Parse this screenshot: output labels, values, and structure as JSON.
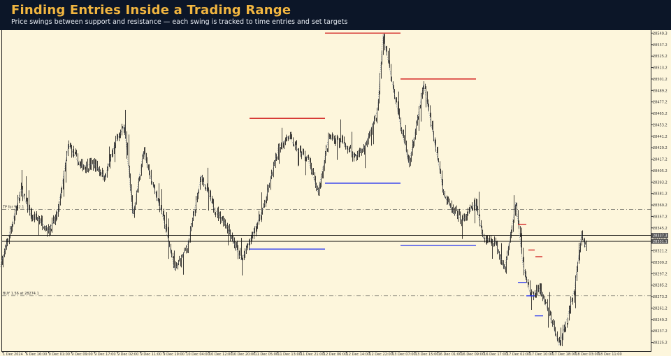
{
  "header": {
    "title": "Finding Entries Inside a Trading Range",
    "subtitle": "Price swings between support and resistance — each swing is tracked to time entries and set targets"
  },
  "chart_data": {
    "type": "candlestick",
    "price_axis": {
      "labels": [
        "28549.3",
        "28537.2",
        "28525.2",
        "28513.2",
        "28501.2",
        "28489.2",
        "28477.2",
        "28465.2",
        "28453.2",
        "28441.2",
        "28429.2",
        "28417.2",
        "28405.2",
        "28393.2",
        "28381.2",
        "28369.2",
        "28357.2",
        "28345.2",
        "28333.2",
        "28321.2",
        "28309.2",
        "28297.2",
        "28285.2",
        "28273.2",
        "28261.2",
        "28249.2",
        "28237.2",
        "28225.2"
      ],
      "range": [
        28219,
        28551
      ]
    },
    "time_axis": {
      "labels": [
        "1 Dec 2024",
        "6 Dec 16:00",
        "9 Dec 01:00",
        "9 Dec 09:00",
        "9 Dec 17:00",
        "9 Dec 02:00",
        "9 Dec 11:00",
        "9 Dec 19:00",
        "10 Dec 04:00",
        "10 Dec 12:00",
        "10 Dec 20:00",
        "11 Dec 05:00",
        "11 Dec 13:00",
        "11 Dec 21:00",
        "12 Dec 06:00",
        "12 Dec 14:00",
        "12 Dec 22:00",
        "13 Dec 07:00",
        "13 Dec 15:00",
        "16 Dec 01:00",
        "16 Dec 09:00",
        "16 Dec 17:00",
        "17 Dec 02:00",
        "17 Dec 10:00",
        "17 Dec 18:00",
        "18 Dec 03:00",
        "18 Dec 11:00"
      ]
    },
    "price_tags": [
      {
        "text": "28337.3",
        "price": 28337.3,
        "color": "#000000"
      },
      {
        "text": "28331.1",
        "price": 28331.1,
        "color": "#000000"
      }
    ],
    "annotations": [
      {
        "text": "TP for 942.1",
        "price": 28364.5
      },
      {
        "text": "BUY 1.56 at 28274.1",
        "price": 28274.1
      }
    ],
    "levels": [
      {
        "kind": "resistance",
        "price": 28549.3,
        "from": 465,
        "to": 573
      },
      {
        "kind": "resistance",
        "price": 28501.2,
        "from": 573,
        "to": 681
      },
      {
        "kind": "resistance",
        "price": 28460.0,
        "from": 357,
        "to": 465
      },
      {
        "kind": "resistance",
        "price": 28349.0,
        "from": 741,
        "to": 753
      },
      {
        "kind": "resistance",
        "price": 28322.0,
        "from": 756,
        "to": 765
      },
      {
        "kind": "resistance",
        "price": 28315.0,
        "from": 766,
        "to": 776
      },
      {
        "kind": "support",
        "price": 28392.0,
        "from": 465,
        "to": 573
      },
      {
        "kind": "support",
        "price": 28323.0,
        "from": 357,
        "to": 465
      },
      {
        "kind": "support",
        "price": 28327.0,
        "from": 573,
        "to": 681
      },
      {
        "kind": "support",
        "price": 28288.0,
        "from": 741,
        "to": 753
      },
      {
        "kind": "support",
        "price": 28274.0,
        "from": 753,
        "to": 765
      },
      {
        "kind": "support",
        "price": 28253.0,
        "from": 765,
        "to": 777
      }
    ],
    "path": [
      {
        "t": 0,
        "p": 28304
      },
      {
        "t": 12,
        "p": 28335
      },
      {
        "t": 30,
        "p": 28386
      },
      {
        "t": 45,
        "p": 28356
      },
      {
        "t": 55,
        "p": 28355
      },
      {
        "t": 70,
        "p": 28342
      },
      {
        "t": 82,
        "p": 28360
      },
      {
        "t": 98,
        "p": 28432
      },
      {
        "t": 115,
        "p": 28410
      },
      {
        "t": 135,
        "p": 28412
      },
      {
        "t": 150,
        "p": 28398
      },
      {
        "t": 165,
        "p": 28435
      },
      {
        "t": 178,
        "p": 28452
      },
      {
        "t": 190,
        "p": 28358
      },
      {
        "t": 205,
        "p": 28425
      },
      {
        "t": 218,
        "p": 28392
      },
      {
        "t": 232,
        "p": 28360
      },
      {
        "t": 250,
        "p": 28301
      },
      {
        "t": 268,
        "p": 28326
      },
      {
        "t": 288,
        "p": 28400
      },
      {
        "t": 305,
        "p": 28367
      },
      {
        "t": 325,
        "p": 28347
      },
      {
        "t": 345,
        "p": 28311
      },
      {
        "t": 360,
        "p": 28336
      },
      {
        "t": 378,
        "p": 28369
      },
      {
        "t": 398,
        "p": 28429
      },
      {
        "t": 412,
        "p": 28441
      },
      {
        "t": 428,
        "p": 28425
      },
      {
        "t": 440,
        "p": 28418
      },
      {
        "t": 455,
        "p": 28382
      },
      {
        "t": 470,
        "p": 28440
      },
      {
        "t": 490,
        "p": 28435
      },
      {
        "t": 508,
        "p": 28420
      },
      {
        "t": 522,
        "p": 28430
      },
      {
        "t": 540,
        "p": 28468
      },
      {
        "t": 548,
        "p": 28548
      },
      {
        "t": 560,
        "p": 28502
      },
      {
        "t": 572,
        "p": 28456
      },
      {
        "t": 585,
        "p": 28412
      },
      {
        "t": 598,
        "p": 28462
      },
      {
        "t": 606,
        "p": 28496
      },
      {
        "t": 620,
        "p": 28442
      },
      {
        "t": 636,
        "p": 28378
      },
      {
        "t": 648,
        "p": 28362
      },
      {
        "t": 662,
        "p": 28353
      },
      {
        "t": 680,
        "p": 28371
      },
      {
        "t": 692,
        "p": 28334
      },
      {
        "t": 708,
        "p": 28331
      },
      {
        "t": 722,
        "p": 28302
      },
      {
        "t": 738,
        "p": 28372
      },
      {
        "t": 748,
        "p": 28307
      },
      {
        "t": 760,
        "p": 28272
      },
      {
        "t": 772,
        "p": 28282
      },
      {
        "t": 784,
        "p": 28258
      },
      {
        "t": 800,
        "p": 28222
      },
      {
        "t": 812,
        "p": 28252
      },
      {
        "t": 822,
        "p": 28282
      },
      {
        "t": 832,
        "p": 28339
      },
      {
        "t": 838,
        "p": 28325
      }
    ]
  }
}
